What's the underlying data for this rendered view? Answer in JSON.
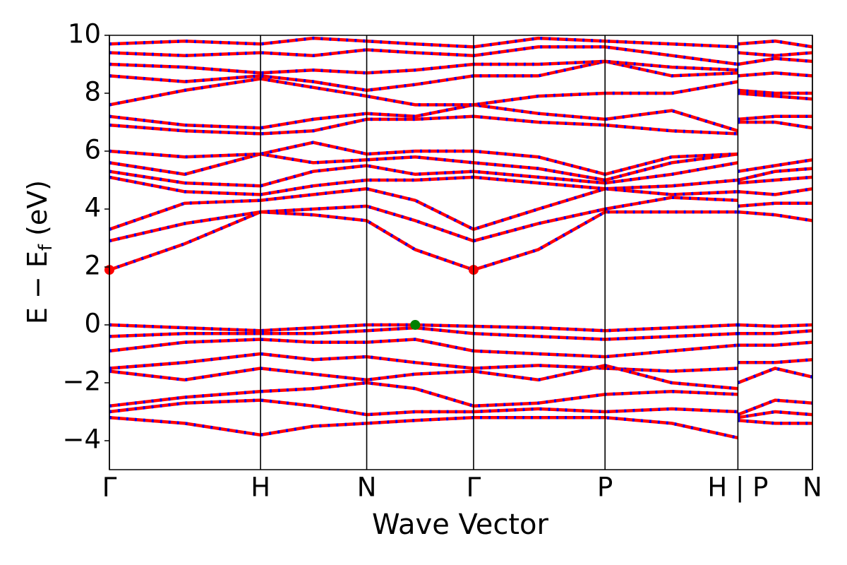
{
  "chart_data": {
    "type": "line",
    "xlabel": "Wave Vector",
    "ylabel": [
      "E − E",
      "f",
      " (eV)"
    ],
    "xlim": [
      0,
      1.0
    ],
    "ylim": [
      -5,
      10
    ],
    "xticks": [
      {
        "value": 0,
        "label": "Γ"
      },
      {
        "value": 0.215,
        "label": "H"
      },
      {
        "value": 0.366,
        "label": "N"
      },
      {
        "value": 0.518,
        "label": "Γ"
      },
      {
        "value": 0.705,
        "label": "P"
      },
      {
        "value": 0.894,
        "label": "H | P"
      },
      {
        "value": 1.0,
        "label": "N"
      }
    ],
    "yticks": [
      {
        "value": -4,
        "label": "−4"
      },
      {
        "value": -2,
        "label": "−2"
      },
      0,
      2,
      4,
      6,
      8,
      10
    ],
    "x_grid": true,
    "dash_color": "#0000ff",
    "x": [
      0,
      0.107,
      0.215,
      0.29,
      0.366,
      0.435,
      0.518,
      0.61,
      0.705,
      0.8,
      0.894,
      0.894,
      0.894,
      0.947,
      1.0
    ],
    "series": [
      {
        "color": "#ff0000",
        "values": [
          0,
          -0.1,
          -0.2,
          -0.1,
          0,
          0,
          -0.05,
          -0.1,
          -0.2,
          -0.1,
          0,
          null,
          0,
          -0.05,
          0
        ]
      },
      {
        "color": "#ff0000",
        "values": [
          -0.4,
          -0.3,
          -0.3,
          -0.3,
          -0.2,
          -0.1,
          -0.3,
          -0.4,
          -0.5,
          -0.4,
          -0.3,
          null,
          -0.3,
          -0.3,
          -0.2
        ]
      },
      {
        "color": "#ff0000",
        "values": [
          -0.9,
          -0.6,
          -0.5,
          -0.6,
          -0.6,
          -0.5,
          -0.9,
          -1.0,
          -1.1,
          -0.9,
          -0.7,
          null,
          -0.7,
          -0.7,
          -0.6
        ]
      },
      {
        "color": "#ff0000",
        "values": [
          -1.5,
          -1.3,
          -1.0,
          -1.2,
          -1.1,
          -1.3,
          -1.5,
          -1.4,
          -1.5,
          -1.6,
          -1.5,
          null,
          -1.3,
          -1.3,
          -1.2
        ]
      },
      {
        "color": "#ff0000",
        "values": [
          -1.6,
          -1.9,
          -1.5,
          -1.7,
          -1.9,
          -1.7,
          -1.6,
          -1.9,
          -1.4,
          -2.0,
          -2.2,
          null,
          -2.0,
          -1.5,
          -1.8
        ]
      },
      {
        "color": "#ff0000",
        "values": [
          -2.8,
          -2.5,
          -2.3,
          -2.2,
          -2.0,
          -2.2,
          -2.8,
          -2.7,
          -2.4,
          -2.3,
          -2.4,
          null,
          -3.1,
          -2.6,
          -2.7
        ]
      },
      {
        "color": "#ff0000",
        "values": [
          -3.0,
          -2.7,
          -2.6,
          -2.8,
          -3.1,
          -3.0,
          -3.0,
          -2.9,
          -3.0,
          -2.9,
          -3.0,
          null,
          -3.2,
          -3.0,
          -3.1
        ]
      },
      {
        "color": "#ff0000",
        "values": [
          -3.2,
          -3.4,
          -3.8,
          -3.5,
          -3.4,
          -3.3,
          -3.2,
          -3.2,
          -3.2,
          -3.4,
          -3.9,
          null,
          -3.3,
          -3.4,
          -3.4
        ]
      },
      {
        "color": "#ff0000",
        "values": [
          1.9,
          2.8,
          3.9,
          3.8,
          3.6,
          2.6,
          1.9,
          2.6,
          3.9,
          3.9,
          3.9,
          null,
          3.9,
          3.8,
          3.6
        ]
      },
      {
        "color": "#ff0000",
        "values": [
          2.9,
          3.5,
          3.9,
          4.0,
          4.1,
          3.6,
          2.9,
          3.5,
          4.0,
          4.4,
          4.3,
          null,
          4.1,
          4.2,
          4.2
        ]
      },
      {
        "color": "#ff0000",
        "values": [
          3.3,
          4.2,
          4.3,
          4.5,
          4.7,
          4.3,
          3.3,
          4.0,
          4.7,
          4.5,
          4.6,
          null,
          4.6,
          4.5,
          4.7
        ]
      },
      {
        "color": "#ff0000",
        "values": [
          5.1,
          4.6,
          4.5,
          4.8,
          5.0,
          5.0,
          5.1,
          4.9,
          4.7,
          4.8,
          5.0,
          null,
          4.9,
          5.0,
          5.1
        ]
      },
      {
        "color": "#ff0000",
        "values": [
          5.3,
          4.9,
          4.8,
          5.3,
          5.5,
          5.2,
          5.3,
          5.1,
          4.9,
          5.2,
          5.6,
          null,
          5.0,
          5.3,
          5.4
        ]
      },
      {
        "color": "#ff0000",
        "values": [
          5.6,
          5.2,
          5.9,
          5.6,
          5.7,
          5.8,
          5.6,
          5.4,
          5.0,
          5.6,
          5.9,
          null,
          5.3,
          5.5,
          5.7
        ]
      },
      {
        "color": "#ff0000",
        "values": [
          6.0,
          5.8,
          5.9,
          6.3,
          5.9,
          6.0,
          6.0,
          5.8,
          5.2,
          5.8,
          5.9,
          null,
          7.0,
          7.0,
          6.8
        ]
      },
      {
        "color": "#ff0000",
        "values": [
          6.9,
          6.7,
          6.6,
          6.7,
          7.1,
          7.1,
          7.2,
          7.0,
          6.9,
          6.7,
          6.6,
          null,
          7.1,
          7.2,
          7.2
        ]
      },
      {
        "color": "#ff0000",
        "values": [
          7.2,
          6.9,
          6.8,
          7.1,
          7.3,
          7.2,
          7.6,
          7.3,
          7.1,
          7.4,
          6.7,
          null,
          8.0,
          7.9,
          7.8
        ]
      },
      {
        "color": "#ff0000",
        "values": [
          7.6,
          8.1,
          8.5,
          8.2,
          7.9,
          7.6,
          7.6,
          7.9,
          8.0,
          8.0,
          8.4,
          null,
          8.1,
          8.0,
          8.0
        ]
      },
      {
        "color": "#ff0000",
        "values": [
          8.6,
          8.4,
          8.6,
          8.4,
          8.1,
          8.3,
          8.6,
          8.6,
          9.1,
          8.6,
          8.7,
          null,
          8.6,
          8.7,
          8.6
        ]
      },
      {
        "color": "#ff0000",
        "values": [
          9.0,
          8.9,
          8.7,
          8.8,
          8.7,
          8.8,
          9.0,
          9.0,
          9.1,
          8.9,
          8.8,
          null,
          9.0,
          9.2,
          9.1
        ]
      },
      {
        "color": "#ff0000",
        "values": [
          9.4,
          9.3,
          9.4,
          9.3,
          9.5,
          9.4,
          9.3,
          9.6,
          9.6,
          9.3,
          9.0,
          null,
          9.4,
          9.3,
          9.4
        ]
      },
      {
        "color": "#ff0000",
        "values": [
          9.7,
          9.8,
          9.7,
          9.9,
          9.8,
          9.7,
          9.6,
          9.9,
          9.8,
          9.7,
          9.6,
          null,
          9.7,
          9.8,
          9.6
        ]
      }
    ],
    "markers": {
      "x": [
        0,
        0.518,
        0.435
      ],
      "y": [
        1.9,
        1.9,
        0
      ],
      "colors": [
        "#ff0000",
        "#ff0000",
        "#008000"
      ]
    }
  }
}
